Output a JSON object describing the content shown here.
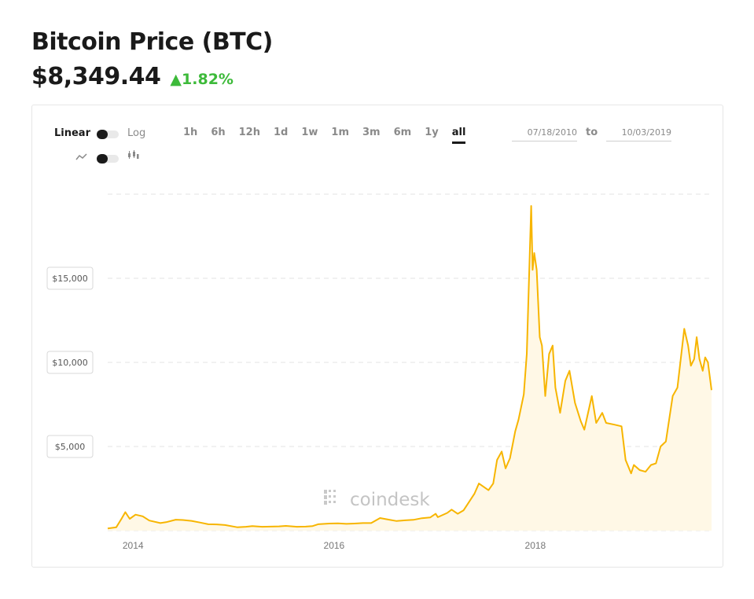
{
  "header": {
    "title": "Bitcoin Price (BTC)",
    "price": "$8,349.44",
    "change": "▲1.82%",
    "change_color": "#3dba3a"
  },
  "controls": {
    "scale_linear": "Linear",
    "scale_log": "Log",
    "ranges": [
      "1h",
      "6h",
      "12h",
      "1d",
      "1w",
      "1m",
      "3m",
      "6m",
      "1y",
      "all"
    ],
    "active_range": "all",
    "date_from": "07/18/2010",
    "date_to": "10/03/2019",
    "to_label": "to",
    "chart_style_line_icon": "line-chart-icon",
    "chart_style_candle_icon": "candlestick-icon"
  },
  "watermark": "coindesk",
  "chart_data": {
    "type": "area",
    "title": "",
    "xlabel": "",
    "ylabel": "",
    "x_ticks": [
      "2014",
      "2016",
      "2018"
    ],
    "y_ticks": [
      "$5,000",
      "$10,000",
      "$15,000"
    ],
    "y_tick_values": [
      5000,
      10000,
      15000
    ],
    "ylim": [
      0,
      20000
    ],
    "xlim": [
      "2013-10-01",
      "2019-10-03"
    ],
    "grid": true,
    "color": "#f7b500",
    "fill_color": "#fff8e6",
    "series": [
      {
        "x": [
          "2013-10-01",
          "2013-11-01",
          "2013-11-20",
          "2013-12-04",
          "2013-12-20",
          "2014-01-10",
          "2014-02-05",
          "2014-03-01",
          "2014-04-10",
          "2014-05-01",
          "2014-06-05",
          "2014-07-01",
          "2014-08-01",
          "2014-09-01",
          "2014-10-01",
          "2014-11-01",
          "2014-12-01",
          "2015-01-14",
          "2015-02-15",
          "2015-03-10",
          "2015-04-15",
          "2015-05-15",
          "2015-06-15",
          "2015-07-10",
          "2015-08-20",
          "2015-09-20",
          "2015-10-15",
          "2015-11-04",
          "2015-12-15",
          "2016-01-15",
          "2016-02-15",
          "2016-03-15",
          "2016-04-15",
          "2016-05-15",
          "2016-06-16",
          "2016-07-15",
          "2016-08-15",
          "2016-09-15",
          "2016-10-15",
          "2016-11-15",
          "2016-12-15",
          "2017-01-04",
          "2017-01-12",
          "2017-02-15",
          "2017-03-03",
          "2017-03-25",
          "2017-04-15",
          "2017-05-01",
          "2017-05-25",
          "2017-06-10",
          "2017-07-15",
          "2017-08-01",
          "2017-08-15",
          "2017-09-01",
          "2017-09-15",
          "2017-10-01",
          "2017-10-20",
          "2017-11-01",
          "2017-11-20",
          "2017-12-01",
          "2017-12-17",
          "2017-12-22",
          "2017-12-28",
          "2018-01-06",
          "2018-01-17",
          "2018-01-25",
          "2018-02-06",
          "2018-02-20",
          "2018-03-05",
          "2018-03-15",
          "2018-04-01",
          "2018-04-20",
          "2018-05-05",
          "2018-05-25",
          "2018-06-15",
          "2018-06-28",
          "2018-07-25",
          "2018-08-10",
          "2018-09-01",
          "2018-09-15",
          "2018-10-15",
          "2018-11-10",
          "2018-11-25",
          "2018-12-15",
          "2018-12-25",
          "2019-01-15",
          "2019-02-05",
          "2019-02-25",
          "2019-03-15",
          "2019-04-01",
          "2019-04-20",
          "2019-05-15",
          "2019-06-01",
          "2019-06-26",
          "2019-07-10",
          "2019-07-20",
          "2019-08-01",
          "2019-08-10",
          "2019-08-20",
          "2019-09-01",
          "2019-09-10",
          "2019-09-20",
          "2019-10-03"
        ],
        "y": [
          130,
          200,
          700,
          1100,
          700,
          950,
          850,
          600,
          450,
          500,
          650,
          630,
          580,
          480,
          380,
          370,
          330,
          200,
          230,
          270,
          230,
          240,
          250,
          280,
          230,
          240,
          270,
          380,
          420,
          430,
          400,
          420,
          450,
          450,
          750,
          660,
          570,
          610,
          640,
          740,
          780,
          1000,
          800,
          1050,
          1250,
          1000,
          1200,
          1600,
          2200,
          2800,
          2400,
          2800,
          4200,
          4700,
          3700,
          4300,
          5900,
          6600,
          8100,
          10500,
          19300,
          15500,
          16500,
          15500,
          11500,
          11000,
          8000,
          10500,
          11000,
          8500,
          7000,
          8900,
          9500,
          7600,
          6500,
          6000,
          8000,
          6400,
          7000,
          6400,
          6300,
          6200,
          4200,
          3400,
          3900,
          3600,
          3500,
          3900,
          4000,
          5000,
          5300,
          8000,
          8500,
          12000,
          11000,
          9800,
          10200,
          11500,
          10200,
          9500,
          10300,
          10000,
          8350
        ]
      }
    ]
  }
}
